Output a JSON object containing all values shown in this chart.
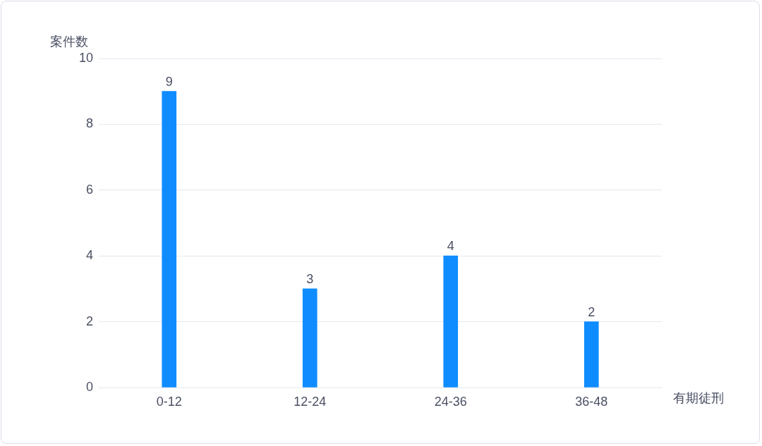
{
  "chart_data": {
    "type": "bar",
    "xlabel": "有期徒刑",
    "ylabel": "案件数",
    "categories": [
      "0-12",
      "12-24",
      "24-36",
      "36-48"
    ],
    "values": [
      9,
      3,
      4,
      2
    ],
    "color": "#0f8cff",
    "ylim": [
      0,
      10
    ],
    "yticks": [
      0,
      2,
      4,
      6,
      8,
      10
    ],
    "grid": "y",
    "data_labels": true,
    "legend": false
  }
}
